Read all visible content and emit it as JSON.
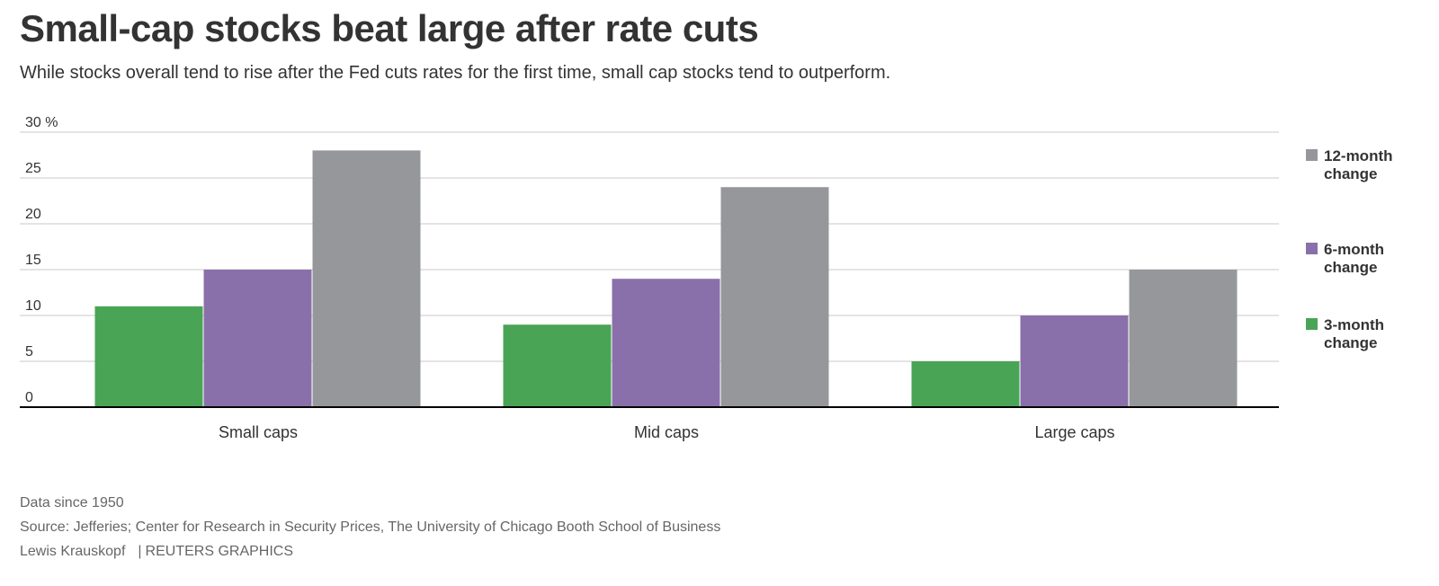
{
  "title": "Small-cap stocks beat large after rate cuts",
  "subtitle": "While stocks overall tend to rise after the Fed cuts rates for the first time, small cap stocks tend to outperform.",
  "chart_data": {
    "type": "bar",
    "categories": [
      "Small caps",
      "Mid caps",
      "Large caps"
    ],
    "series": [
      {
        "name": "3-month change",
        "legend_lines": [
          "3-month",
          "change"
        ],
        "color": "#4aa456",
        "values": [
          11,
          9,
          5
        ]
      },
      {
        "name": "6-month change",
        "legend_lines": [
          "6-month",
          "change"
        ],
        "color": "#8a70aa",
        "values": [
          15,
          14,
          10
        ]
      },
      {
        "name": "12-month change",
        "legend_lines": [
          "12-month",
          "change"
        ],
        "color": "#96979b",
        "values": [
          28,
          24,
          15
        ]
      }
    ],
    "y_ticks": [
      0,
      5,
      10,
      15,
      20,
      25,
      30
    ],
    "y_tick_labels": [
      "0",
      "5",
      "10",
      "15",
      "20",
      "25",
      "30 %"
    ],
    "ylim": [
      0,
      30
    ],
    "grid": true,
    "legend_position": "right"
  },
  "footer": {
    "note": "Data since 1950",
    "source": "Source: Jefferies; Center for Research in Security Prices, The University of Chicago Booth School of Business",
    "author": "Lewis Krauskopf",
    "separator": "|",
    "credit": "REUTERS GRAPHICS"
  }
}
